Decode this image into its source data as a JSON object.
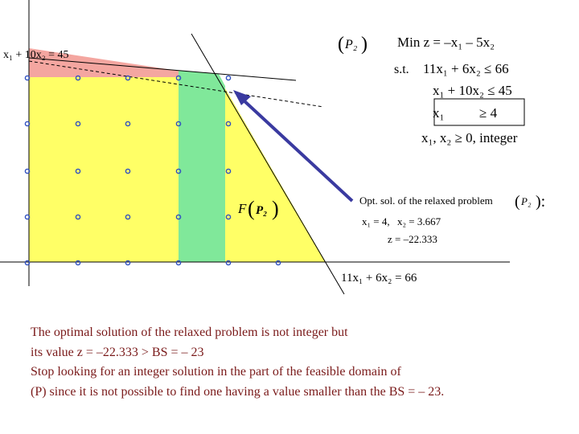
{
  "colors": {
    "feasible_region": "#ffff66",
    "cut_region": "#f4a6a0",
    "subproblem_strip": "#80e89a",
    "arrow": "#3a3aa0",
    "lattice_point": "#3050c0",
    "bottom_text": "#7a1a1a"
  },
  "diagram": {
    "constraint2_label": "x₁ + 10x₂ = 45",
    "constraint1_label": "11x₁ + 6x₂ = 66",
    "region_label": "F",
    "region_label_arg": "P₂",
    "model": {
      "name": "P₂",
      "objective": "Min  z = –x₁ – 5x₂",
      "st": "s.t.",
      "c1": "11x₁ + 6x₂ ≤ 66",
      "c2": "x₁ + 10x₂ ≤ 45",
      "c3_var": "x₁",
      "c3_rel": "≥ 4",
      "c4": "x₁, x₂ ≥ 0,  integer"
    },
    "relaxed": {
      "title": "Opt. sol. of the relaxed problem",
      "problem": "P₂",
      "sol_x1": "x₁ = 4,",
      "sol_x2": "x₂ = 3.667",
      "sol_z": "z = –22.333"
    }
  },
  "text": {
    "line1": "The optimal solution of the relaxed problem is not integer but",
    "line2": "its value  z = –22.333 > BS = – 23",
    "line3": "Stop looking for an integer solution in the part of the feasible domain of",
    "line4": "(P) since it is not possible to find one having a value smaller than the BS = – 23."
  }
}
